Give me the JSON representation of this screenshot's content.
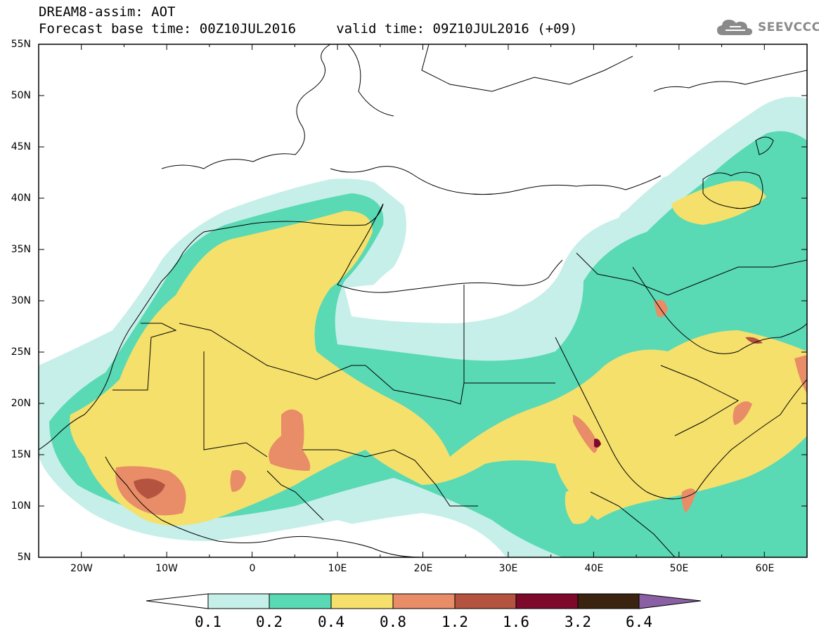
{
  "header": {
    "line1": "DREAM8-assim: AOT",
    "line2": "Forecast base time: 00Z10JUL2016     valid time: 09Z10JUL2016 (+09)"
  },
  "logo": {
    "icon": "cloud-icon",
    "text": "SEEVCCC"
  },
  "axes": {
    "lat_labels": [
      "55N",
      "50N",
      "45N",
      "40N",
      "35N",
      "30N",
      "25N",
      "20N",
      "15N",
      "10N",
      "5N"
    ],
    "lon_labels": [
      "20W",
      "10W",
      "0",
      "10E",
      "20E",
      "30E",
      "40E",
      "50E",
      "60E"
    ],
    "lat_range": [
      5,
      55
    ],
    "lon_range": [
      -25,
      65
    ]
  },
  "colorbar": {
    "labels": [
      "0.1",
      "0.2",
      "0.4",
      "0.8",
      "1.2",
      "1.6",
      "3.2",
      "6.4"
    ],
    "colors": [
      "#ffffff",
      "#c6efe9",
      "#5ad9b5",
      "#f5e06c",
      "#e88d67",
      "#b4533f",
      "#7d0a2a",
      "#3a2410",
      "#8a5fa3"
    ]
  },
  "palette": {
    "land_border": "#000000",
    "ocean": "#ffffff"
  }
}
